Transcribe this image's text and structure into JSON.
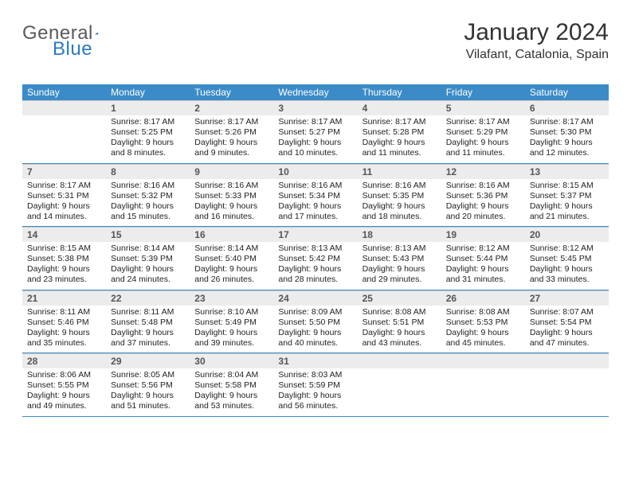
{
  "logo": {
    "word1": "General",
    "word2": "Blue"
  },
  "title": "January 2024",
  "location": "Vilafant, Catalonia, Spain",
  "colors": {
    "header_bg": "#3b8bc8",
    "band_bg": "#ececec",
    "rule": "#3b8bc8",
    "logo_gray": "#5a5a5a",
    "logo_blue": "#2a7ac0"
  },
  "days_of_week": [
    "Sunday",
    "Monday",
    "Tuesday",
    "Wednesday",
    "Thursday",
    "Friday",
    "Saturday"
  ],
  "weeks": [
    [
      null,
      {
        "n": "1",
        "sr": "Sunrise: 8:17 AM",
        "ss": "Sunset: 5:25 PM",
        "d1": "Daylight: 9 hours",
        "d2": "and 8 minutes."
      },
      {
        "n": "2",
        "sr": "Sunrise: 8:17 AM",
        "ss": "Sunset: 5:26 PM",
        "d1": "Daylight: 9 hours",
        "d2": "and 9 minutes."
      },
      {
        "n": "3",
        "sr": "Sunrise: 8:17 AM",
        "ss": "Sunset: 5:27 PM",
        "d1": "Daylight: 9 hours",
        "d2": "and 10 minutes."
      },
      {
        "n": "4",
        "sr": "Sunrise: 8:17 AM",
        "ss": "Sunset: 5:28 PM",
        "d1": "Daylight: 9 hours",
        "d2": "and 11 minutes."
      },
      {
        "n": "5",
        "sr": "Sunrise: 8:17 AM",
        "ss": "Sunset: 5:29 PM",
        "d1": "Daylight: 9 hours",
        "d2": "and 11 minutes."
      },
      {
        "n": "6",
        "sr": "Sunrise: 8:17 AM",
        "ss": "Sunset: 5:30 PM",
        "d1": "Daylight: 9 hours",
        "d2": "and 12 minutes."
      }
    ],
    [
      {
        "n": "7",
        "sr": "Sunrise: 8:17 AM",
        "ss": "Sunset: 5:31 PM",
        "d1": "Daylight: 9 hours",
        "d2": "and 14 minutes."
      },
      {
        "n": "8",
        "sr": "Sunrise: 8:16 AM",
        "ss": "Sunset: 5:32 PM",
        "d1": "Daylight: 9 hours",
        "d2": "and 15 minutes."
      },
      {
        "n": "9",
        "sr": "Sunrise: 8:16 AM",
        "ss": "Sunset: 5:33 PM",
        "d1": "Daylight: 9 hours",
        "d2": "and 16 minutes."
      },
      {
        "n": "10",
        "sr": "Sunrise: 8:16 AM",
        "ss": "Sunset: 5:34 PM",
        "d1": "Daylight: 9 hours",
        "d2": "and 17 minutes."
      },
      {
        "n": "11",
        "sr": "Sunrise: 8:16 AM",
        "ss": "Sunset: 5:35 PM",
        "d1": "Daylight: 9 hours",
        "d2": "and 18 minutes."
      },
      {
        "n": "12",
        "sr": "Sunrise: 8:16 AM",
        "ss": "Sunset: 5:36 PM",
        "d1": "Daylight: 9 hours",
        "d2": "and 20 minutes."
      },
      {
        "n": "13",
        "sr": "Sunrise: 8:15 AM",
        "ss": "Sunset: 5:37 PM",
        "d1": "Daylight: 9 hours",
        "d2": "and 21 minutes."
      }
    ],
    [
      {
        "n": "14",
        "sr": "Sunrise: 8:15 AM",
        "ss": "Sunset: 5:38 PM",
        "d1": "Daylight: 9 hours",
        "d2": "and 23 minutes."
      },
      {
        "n": "15",
        "sr": "Sunrise: 8:14 AM",
        "ss": "Sunset: 5:39 PM",
        "d1": "Daylight: 9 hours",
        "d2": "and 24 minutes."
      },
      {
        "n": "16",
        "sr": "Sunrise: 8:14 AM",
        "ss": "Sunset: 5:40 PM",
        "d1": "Daylight: 9 hours",
        "d2": "and 26 minutes."
      },
      {
        "n": "17",
        "sr": "Sunrise: 8:13 AM",
        "ss": "Sunset: 5:42 PM",
        "d1": "Daylight: 9 hours",
        "d2": "and 28 minutes."
      },
      {
        "n": "18",
        "sr": "Sunrise: 8:13 AM",
        "ss": "Sunset: 5:43 PM",
        "d1": "Daylight: 9 hours",
        "d2": "and 29 minutes."
      },
      {
        "n": "19",
        "sr": "Sunrise: 8:12 AM",
        "ss": "Sunset: 5:44 PM",
        "d1": "Daylight: 9 hours",
        "d2": "and 31 minutes."
      },
      {
        "n": "20",
        "sr": "Sunrise: 8:12 AM",
        "ss": "Sunset: 5:45 PM",
        "d1": "Daylight: 9 hours",
        "d2": "and 33 minutes."
      }
    ],
    [
      {
        "n": "21",
        "sr": "Sunrise: 8:11 AM",
        "ss": "Sunset: 5:46 PM",
        "d1": "Daylight: 9 hours",
        "d2": "and 35 minutes."
      },
      {
        "n": "22",
        "sr": "Sunrise: 8:11 AM",
        "ss": "Sunset: 5:48 PM",
        "d1": "Daylight: 9 hours",
        "d2": "and 37 minutes."
      },
      {
        "n": "23",
        "sr": "Sunrise: 8:10 AM",
        "ss": "Sunset: 5:49 PM",
        "d1": "Daylight: 9 hours",
        "d2": "and 39 minutes."
      },
      {
        "n": "24",
        "sr": "Sunrise: 8:09 AM",
        "ss": "Sunset: 5:50 PM",
        "d1": "Daylight: 9 hours",
        "d2": "and 40 minutes."
      },
      {
        "n": "25",
        "sr": "Sunrise: 8:08 AM",
        "ss": "Sunset: 5:51 PM",
        "d1": "Daylight: 9 hours",
        "d2": "and 43 minutes."
      },
      {
        "n": "26",
        "sr": "Sunrise: 8:08 AM",
        "ss": "Sunset: 5:53 PM",
        "d1": "Daylight: 9 hours",
        "d2": "and 45 minutes."
      },
      {
        "n": "27",
        "sr": "Sunrise: 8:07 AM",
        "ss": "Sunset: 5:54 PM",
        "d1": "Daylight: 9 hours",
        "d2": "and 47 minutes."
      }
    ],
    [
      {
        "n": "28",
        "sr": "Sunrise: 8:06 AM",
        "ss": "Sunset: 5:55 PM",
        "d1": "Daylight: 9 hours",
        "d2": "and 49 minutes."
      },
      {
        "n": "29",
        "sr": "Sunrise: 8:05 AM",
        "ss": "Sunset: 5:56 PM",
        "d1": "Daylight: 9 hours",
        "d2": "and 51 minutes."
      },
      {
        "n": "30",
        "sr": "Sunrise: 8:04 AM",
        "ss": "Sunset: 5:58 PM",
        "d1": "Daylight: 9 hours",
        "d2": "and 53 minutes."
      },
      {
        "n": "31",
        "sr": "Sunrise: 8:03 AM",
        "ss": "Sunset: 5:59 PM",
        "d1": "Daylight: 9 hours",
        "d2": "and 56 minutes."
      },
      null,
      null,
      null
    ]
  ]
}
